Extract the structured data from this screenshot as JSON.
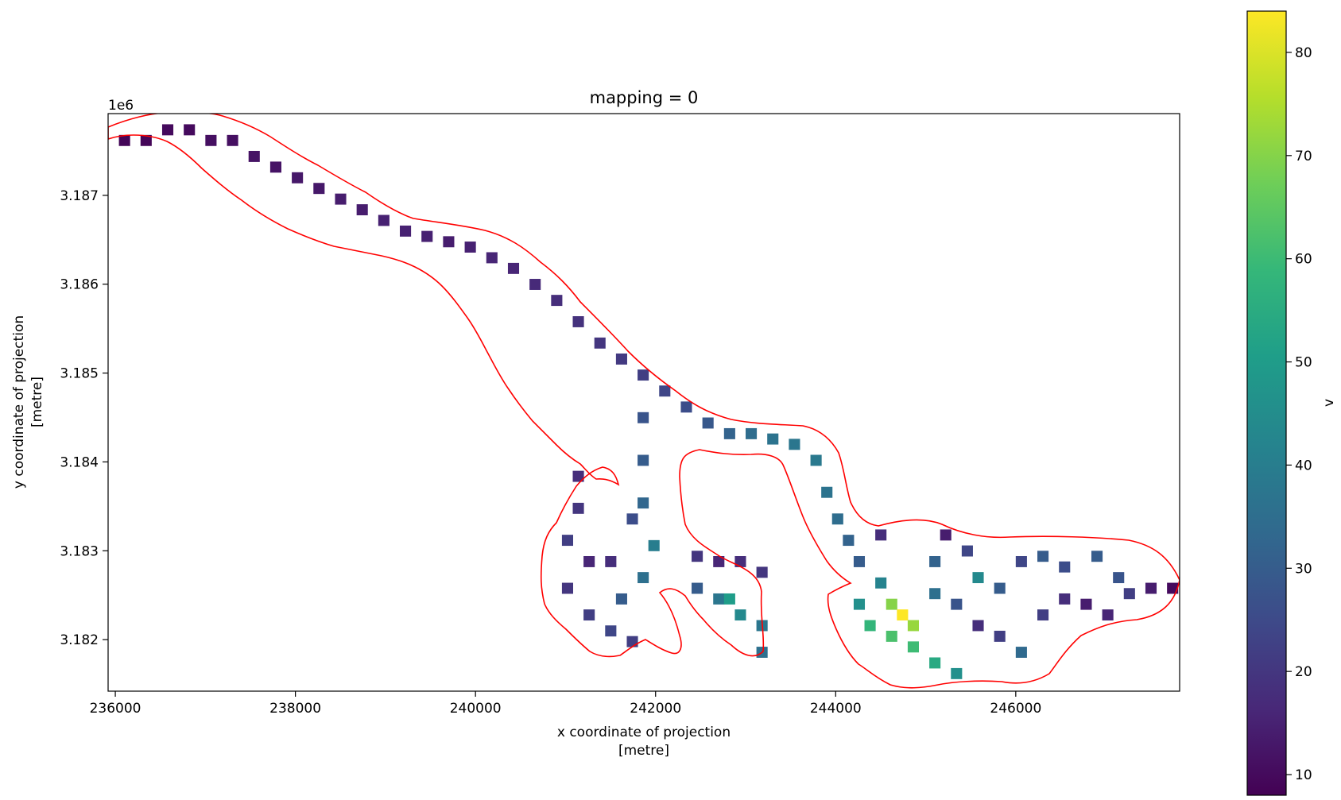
{
  "chart_data": {
    "type": "heatmap",
    "title": "mapping = 0",
    "xlabel_line1": "x coordinate of projection",
    "xlabel_line2": "[metre]",
    "ylabel_line1": "y coordinate of projection",
    "ylabel_line2": "[metre]",
    "y_offset_label": "1e6",
    "xlim": [
      235920,
      247820
    ],
    "ylim": [
      3181420,
      3187920
    ],
    "x_ticks": [
      236000,
      238000,
      240000,
      242000,
      244000,
      246000
    ],
    "x_tick_labels": [
      "236000",
      "238000",
      "240000",
      "242000",
      "244000",
      "246000"
    ],
    "y_ticks": [
      3182000,
      3183000,
      3184000,
      3185000,
      3186000,
      3187000
    ],
    "y_tick_labels": [
      "3.182",
      "3.183",
      "3.184",
      "3.185",
      "3.186",
      "3.187"
    ],
    "colorbar": {
      "label": "v",
      "range": [
        8,
        84
      ],
      "colormap": "viridis",
      "ticks": [
        10,
        20,
        30,
        40,
        50,
        60,
        70,
        80
      ],
      "tick_labels": [
        "10",
        "20",
        "30",
        "40",
        "50",
        "60",
        "70",
        "80"
      ]
    },
    "outline_color": "#ff0000",
    "cell_size_m": 120,
    "cell_note": "x = centre of cell column (m), y = centre of cell row (m), v = cell value; each cell is 120 m square",
    "cells": [
      [
        236100,
        3187620,
        9
      ],
      [
        236340,
        3187620,
        9
      ],
      [
        236580,
        3187740,
        10
      ],
      [
        236820,
        3187740,
        10
      ],
      [
        237060,
        3187620,
        11
      ],
      [
        237300,
        3187620,
        11
      ],
      [
        237540,
        3187440,
        12
      ],
      [
        237780,
        3187320,
        12
      ],
      [
        238020,
        3187200,
        13
      ],
      [
        238260,
        3187080,
        13
      ],
      [
        238500,
        3186960,
        14
      ],
      [
        238740,
        3186840,
        14
      ],
      [
        238980,
        3186720,
        15
      ],
      [
        239220,
        3186600,
        15
      ],
      [
        239460,
        3186540,
        15
      ],
      [
        239700,
        3186480,
        14
      ],
      [
        239940,
        3186420,
        15
      ],
      [
        240180,
        3186300,
        16
      ],
      [
        240420,
        3186180,
        16
      ],
      [
        240660,
        3186000,
        17
      ],
      [
        240900,
        3185820,
        18
      ],
      [
        241140,
        3185580,
        19
      ],
      [
        241380,
        3185340,
        20
      ],
      [
        241620,
        3185160,
        21
      ],
      [
        241860,
        3184980,
        22
      ],
      [
        242100,
        3184800,
        24
      ],
      [
        242340,
        3184620,
        26
      ],
      [
        242580,
        3184440,
        29
      ],
      [
        242820,
        3184320,
        32
      ],
      [
        243060,
        3184320,
        35
      ],
      [
        243300,
        3184260,
        37
      ],
      [
        243540,
        3184200,
        38
      ],
      [
        243780,
        3184020,
        39
      ],
      [
        243900,
        3183660,
        37
      ],
      [
        244020,
        3183360,
        35
      ],
      [
        244140,
        3183120,
        32
      ],
      [
        241860,
        3184500,
        28
      ],
      [
        241860,
        3184020,
        30
      ],
      [
        241860,
        3183540,
        33
      ],
      [
        241980,
        3183060,
        40
      ],
      [
        241860,
        3182700,
        36
      ],
      [
        241620,
        3182460,
        30
      ],
      [
        241500,
        3182100,
        24
      ],
      [
        241740,
        3181980,
        22
      ],
      [
        241140,
        3183840,
        18
      ],
      [
        241140,
        3183480,
        20
      ],
      [
        241020,
        3183120,
        22
      ],
      [
        241260,
        3182880,
        16
      ],
      [
        241020,
        3182580,
        20
      ],
      [
        241260,
        3182280,
        22
      ],
      [
        241500,
        3182880,
        18
      ],
      [
        241740,
        3183360,
        26
      ],
      [
        242460,
        3182940,
        20
      ],
      [
        242700,
        3182880,
        16
      ],
      [
        242940,
        3182880,
        18
      ],
      [
        243180,
        3182760,
        20
      ],
      [
        242700,
        3182460,
        38
      ],
      [
        242820,
        3182460,
        50
      ],
      [
        242940,
        3182280,
        44
      ],
      [
        243180,
        3182160,
        38
      ],
      [
        243180,
        3181860,
        36
      ],
      [
        242460,
        3182580,
        30
      ],
      [
        244260,
        3182880,
        30
      ],
      [
        244500,
        3182640,
        42
      ],
      [
        244620,
        3182400,
        70
      ],
      [
        244740,
        3182280,
        84
      ],
      [
        244860,
        3182160,
        72
      ],
      [
        244620,
        3182040,
        62
      ],
      [
        244860,
        3181920,
        60
      ],
      [
        245100,
        3181740,
        54
      ],
      [
        245340,
        3181620,
        46
      ],
      [
        245100,
        3182520,
        36
      ],
      [
        245340,
        3182400,
        28
      ],
      [
        245580,
        3182700,
        44
      ],
      [
        245820,
        3182580,
        30
      ],
      [
        245580,
        3182160,
        18
      ],
      [
        245820,
        3182040,
        22
      ],
      [
        246060,
        3181860,
        34
      ],
      [
        246300,
        3182280,
        22
      ],
      [
        246540,
        3182460,
        18
      ],
      [
        246780,
        3182400,
        14
      ],
      [
        247020,
        3182280,
        16
      ],
      [
        247260,
        3182520,
        22
      ],
      [
        247500,
        3182580,
        14
      ],
      [
        247740,
        3182580,
        10
      ],
      [
        246060,
        3182880,
        24
      ],
      [
        246300,
        3182940,
        30
      ],
      [
        246540,
        3182820,
        26
      ],
      [
        246900,
        3182940,
        30
      ],
      [
        247140,
        3182700,
        28
      ],
      [
        244380,
        3182160,
        58
      ],
      [
        244260,
        3182400,
        46
      ],
      [
        245100,
        3182880,
        32
      ],
      [
        245460,
        3183000,
        24
      ],
      [
        244500,
        3183180,
        18
      ],
      [
        245220,
        3183180,
        14
      ]
    ]
  }
}
